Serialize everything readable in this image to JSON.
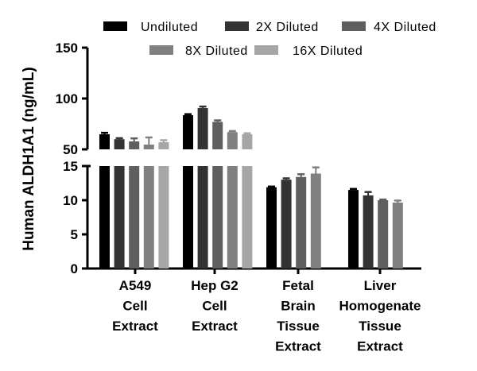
{
  "chart_data": {
    "type": "bar",
    "ylabel": "Human ALDH1A1 (ng/mL)",
    "xlabel": "",
    "categories": [
      [
        "A549",
        "Cell",
        "Extract"
      ],
      [
        "Hep G2",
        "Cell",
        "Extract"
      ],
      [
        "Fetal",
        "Brain",
        "Tissue",
        "Extract"
      ],
      [
        "Liver",
        "Homogenate",
        "Tissue",
        "Extract"
      ]
    ],
    "y_axis_break": {
      "lower_range": [
        0,
        15
      ],
      "upper_range": [
        50,
        150
      ]
    },
    "lower_ticks": [
      "0",
      "5",
      "10",
      "15"
    ],
    "upper_ticks": [
      "50",
      "100",
      "150"
    ],
    "legend_position": "top",
    "grid": false,
    "series": [
      {
        "name": "Undiluted",
        "color": "#000000",
        "values": [
          64.8,
          83.6,
          11.9,
          11.5
        ],
        "errors": [
          1.5,
          1.0,
          0.1,
          0.15
        ]
      },
      {
        "name": "2X Diluted",
        "color": "#333333",
        "values": [
          60,
          90.6,
          13.0,
          10.7
        ],
        "errors": [
          1.0,
          1.5,
          0.2,
          0.5
        ]
      },
      {
        "name": "4X Diluted",
        "color": "#5f5f5f",
        "values": [
          57.8,
          77,
          13.4,
          10.0
        ],
        "errors": [
          3.0,
          1.5,
          0.4,
          0.1
        ]
      },
      {
        "name": "8X Diluted",
        "color": "#808080",
        "values": [
          54.7,
          67,
          13.9,
          9.65
        ],
        "errors": [
          7.0,
          1.0,
          0.9,
          0.3
        ]
      },
      {
        "name": "16X Diluted",
        "color": "#a6a6a6",
        "values": [
          57,
          64.8,
          null,
          null
        ],
        "errors": [
          2.0,
          1.0,
          null,
          null
        ]
      }
    ]
  }
}
